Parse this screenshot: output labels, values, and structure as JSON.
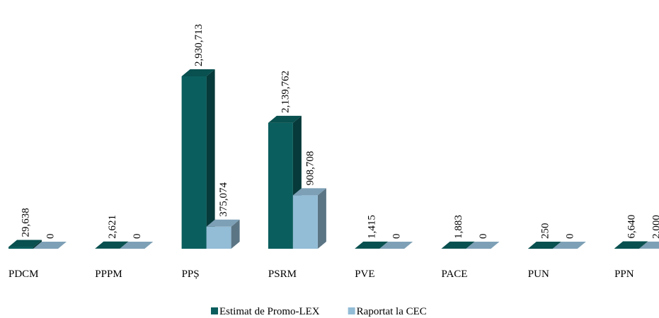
{
  "chart_data": {
    "type": "bar3d",
    "categories": [
      "PDCM",
      "PPPM",
      "PPȘ",
      "PSRM",
      "PVE",
      "PACE",
      "PUN",
      "PPN"
    ],
    "series": [
      {
        "name": "Estimat de Promo-LEX",
        "color": "#0b5e5e",
        "values": [
          29638,
          2621,
          2930713,
          2139762,
          1415,
          1883,
          250,
          6640
        ],
        "value_labels": [
          "29,638",
          "2,621",
          "2,930,713",
          "2,139,762",
          "1,415",
          "1,883",
          "250",
          "6,640"
        ]
      },
      {
        "name": "Raportat la CEC",
        "color": "#93bcd6",
        "values": [
          0,
          0,
          375074,
          908708,
          0,
          0,
          0,
          2000
        ],
        "value_labels": [
          "0",
          "0",
          "375,074",
          "908,708",
          "0",
          "0",
          "0",
          "2,000"
        ]
      }
    ],
    "legend": "bottom"
  }
}
